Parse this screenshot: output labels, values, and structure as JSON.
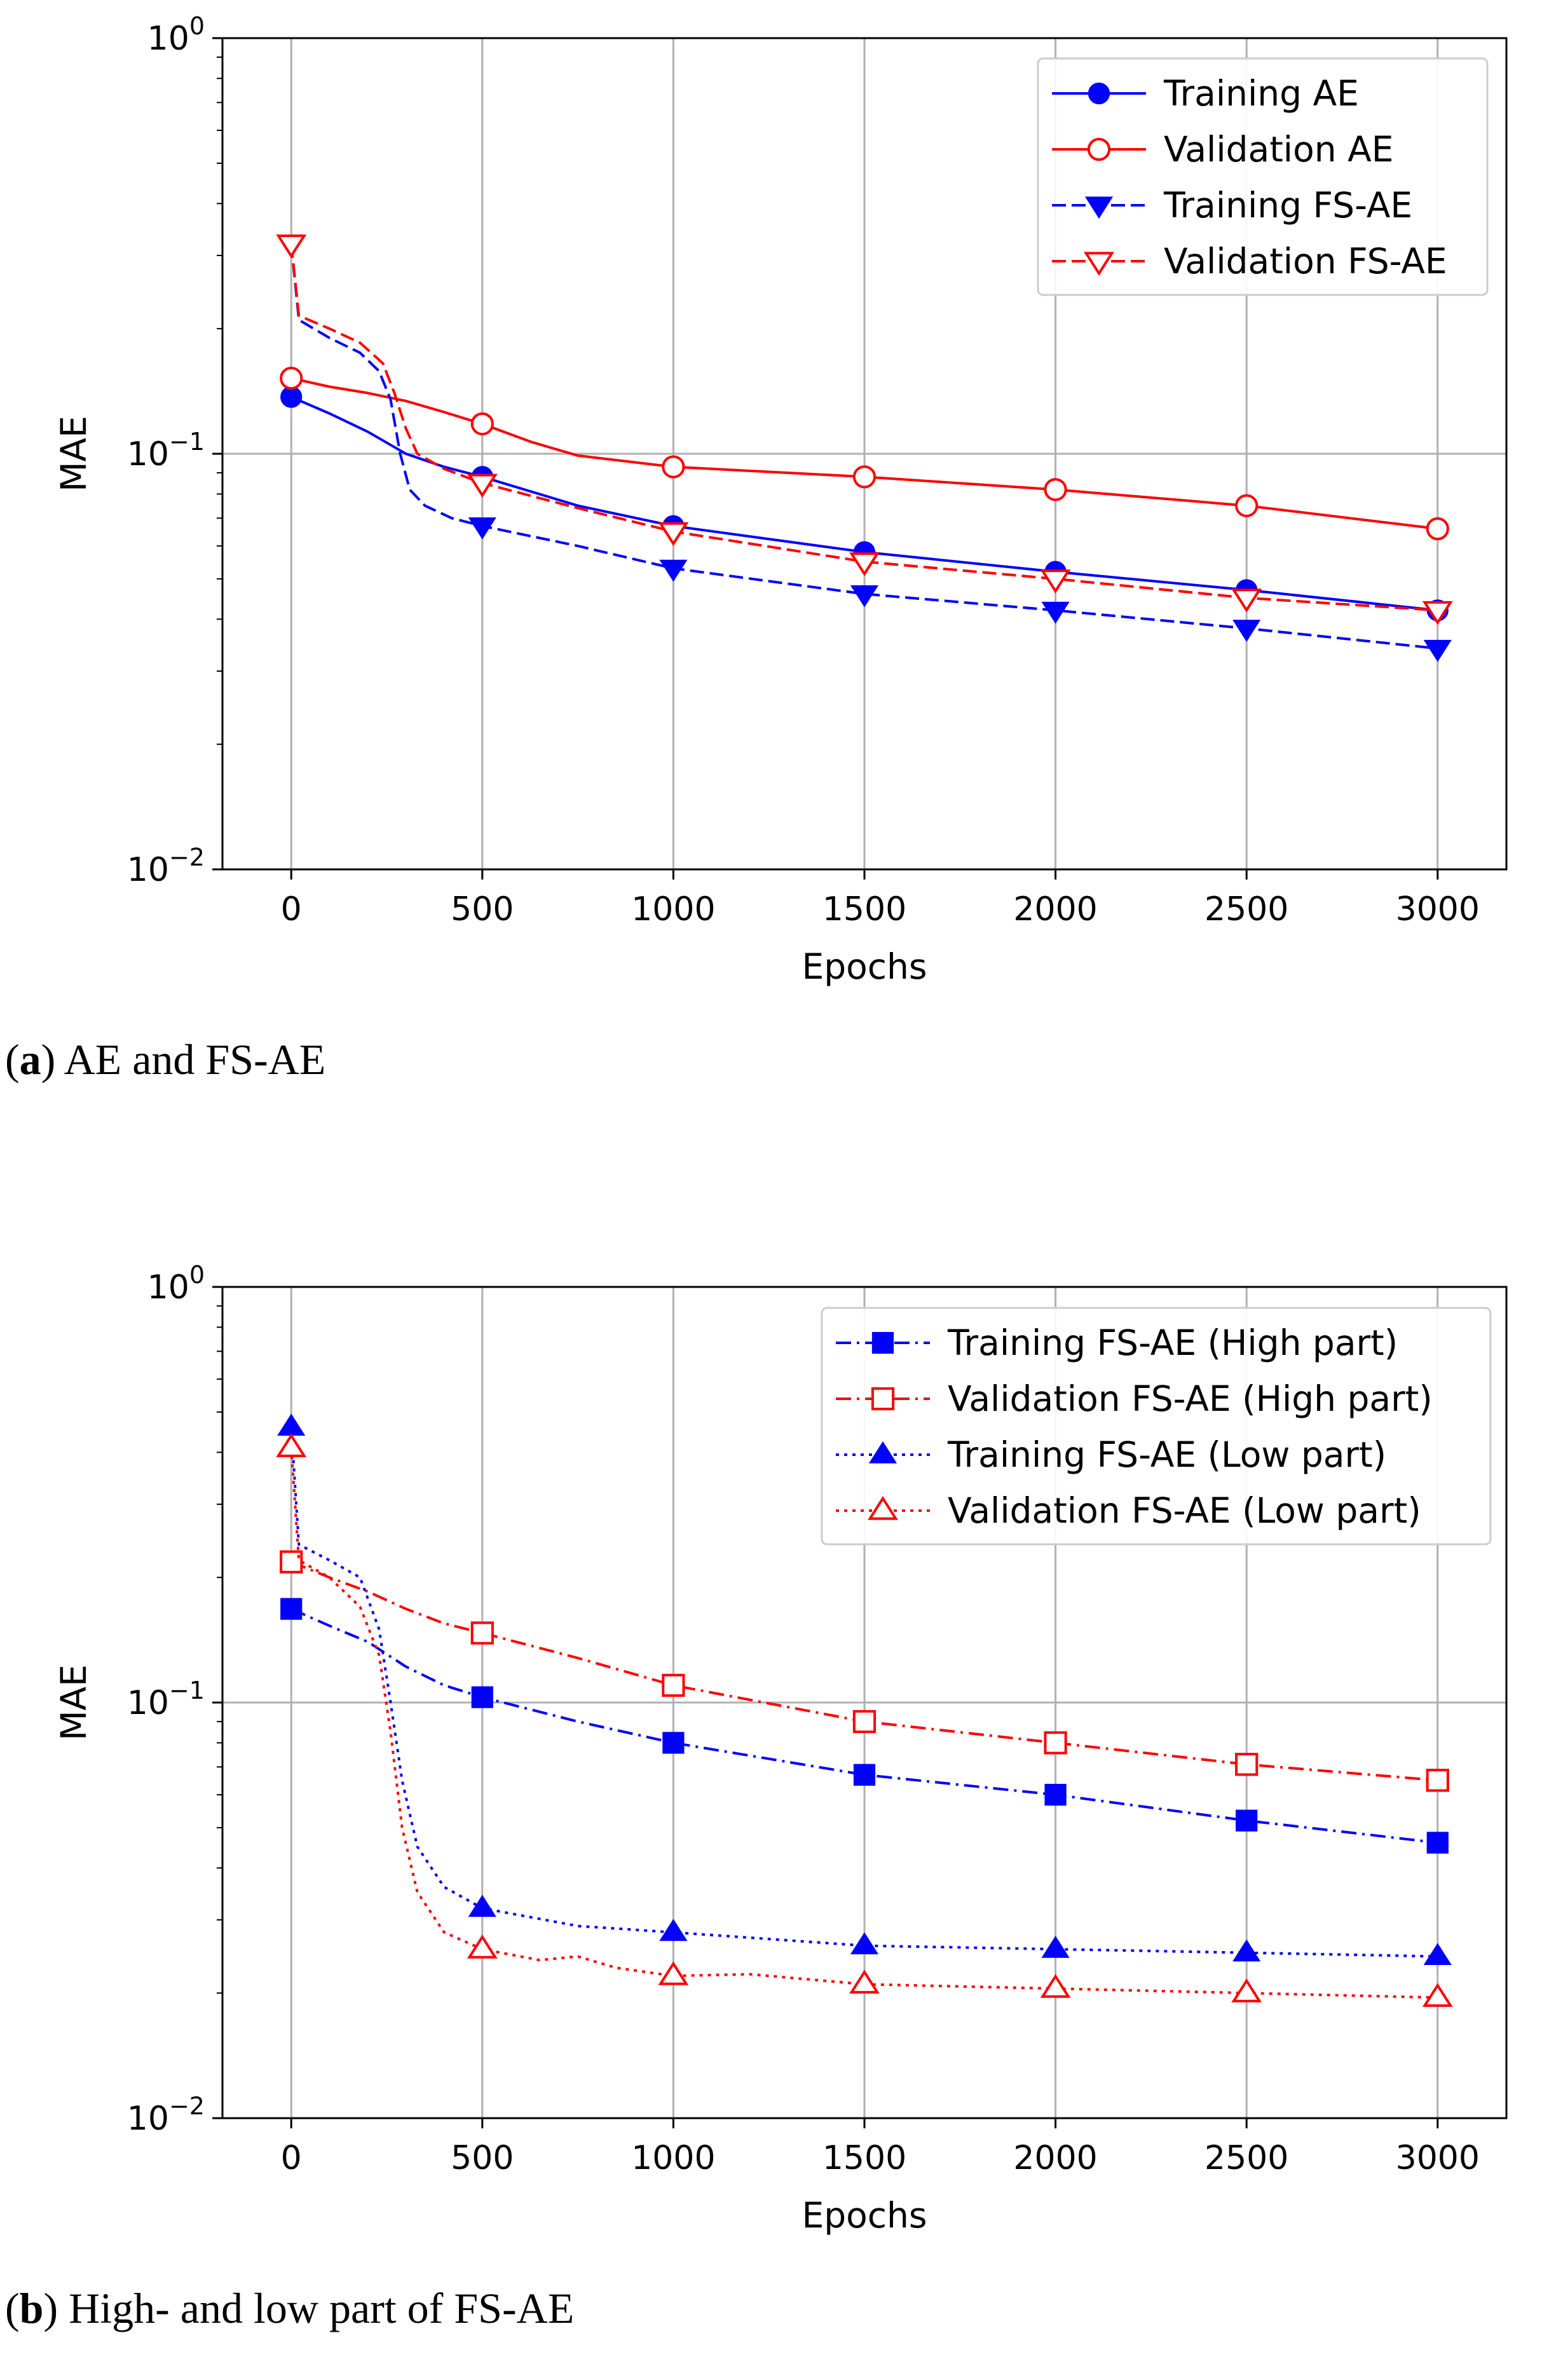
{
  "chart_data": [
    {
      "type": "line",
      "caption_letter": "a",
      "caption_text": "AE and FS-AE",
      "xlabel": "Epochs",
      "ylabel": "MAE",
      "yscale": "log",
      "xlim": [
        -180,
        3180
      ],
      "ylim": [
        0.01,
        1
      ],
      "x_ticks": [
        0,
        500,
        1000,
        1500,
        2000,
        2500,
        3000
      ],
      "x_tick_labels": [
        "0",
        "500",
        "1000",
        "1500",
        "2000",
        "2500",
        "3000"
      ],
      "y_ticks": [
        0.01,
        0.1,
        1
      ],
      "y_tick_labels": [
        {
          "base": "10",
          "exp": "−2"
        },
        {
          "base": "10",
          "exp": "−1"
        },
        {
          "base": "10",
          "exp": "0"
        }
      ],
      "grid": true,
      "legend_position": "top-right",
      "series": [
        {
          "name": "Training AE",
          "color": "#0000ff",
          "dash": "solid",
          "marker": "circle-filled",
          "curve": [
            [
              0,
              0.137
            ],
            [
              100,
              0.125
            ],
            [
              200,
              0.113
            ],
            [
              300,
              0.1
            ],
            [
              400,
              0.093
            ],
            [
              500,
              0.088
            ],
            [
              750,
              0.075
            ],
            [
              1000,
              0.067
            ],
            [
              1500,
              0.058
            ],
            [
              2000,
              0.052
            ],
            [
              2500,
              0.047
            ],
            [
              3000,
              0.042
            ]
          ],
          "markers": [
            [
              0,
              0.137
            ],
            [
              500,
              0.088
            ],
            [
              1000,
              0.067
            ],
            [
              1500,
              0.058
            ],
            [
              2000,
              0.052
            ],
            [
              2500,
              0.047
            ],
            [
              3000,
              0.042
            ]
          ]
        },
        {
          "name": "Validation AE",
          "color": "#ff0000",
          "dash": "solid",
          "marker": "circle-open",
          "curve": [
            [
              0,
              0.152
            ],
            [
              100,
              0.145
            ],
            [
              200,
              0.14
            ],
            [
              300,
              0.134
            ],
            [
              400,
              0.126
            ],
            [
              500,
              0.118
            ],
            [
              625,
              0.107
            ],
            [
              750,
              0.099
            ],
            [
              1000,
              0.093
            ],
            [
              1500,
              0.088
            ],
            [
              2000,
              0.082
            ],
            [
              2500,
              0.075
            ],
            [
              3000,
              0.066
            ]
          ],
          "markers": [
            [
              0,
              0.152
            ],
            [
              500,
              0.118
            ],
            [
              1000,
              0.093
            ],
            [
              1500,
              0.088
            ],
            [
              2000,
              0.082
            ],
            [
              2500,
              0.075
            ],
            [
              3000,
              0.066
            ]
          ]
        },
        {
          "name": "Training FS-AE",
          "color": "#0000ff",
          "dash": "dashed",
          "marker": "triangle-down-filled",
          "curve": [
            [
              0,
              0.32
            ],
            [
              20,
              0.21
            ],
            [
              100,
              0.19
            ],
            [
              180,
              0.175
            ],
            [
              230,
              0.158
            ],
            [
              260,
              0.135
            ],
            [
              285,
              0.1
            ],
            [
              310,
              0.082
            ],
            [
              350,
              0.075
            ],
            [
              420,
              0.07
            ],
            [
              500,
              0.067
            ],
            [
              750,
              0.06
            ],
            [
              1000,
              0.053
            ],
            [
              1500,
              0.046
            ],
            [
              2000,
              0.042
            ],
            [
              2500,
              0.038
            ],
            [
              3000,
              0.034
            ]
          ],
          "markers": [
            [
              0,
              0.32
            ],
            [
              500,
              0.067
            ],
            [
              1000,
              0.053
            ],
            [
              1500,
              0.046
            ],
            [
              2000,
              0.042
            ],
            [
              2500,
              0.038
            ],
            [
              3000,
              0.034
            ]
          ]
        },
        {
          "name": "Validation FS-AE",
          "color": "#ff0000",
          "dash": "dashed",
          "marker": "triangle-down-open",
          "curve": [
            [
              0,
              0.32
            ],
            [
              20,
              0.215
            ],
            [
              100,
              0.2
            ],
            [
              180,
              0.185
            ],
            [
              240,
              0.165
            ],
            [
              270,
              0.14
            ],
            [
              300,
              0.115
            ],
            [
              330,
              0.1
            ],
            [
              400,
              0.092
            ],
            [
              500,
              0.085
            ],
            [
              750,
              0.074
            ],
            [
              1000,
              0.065
            ],
            [
              1500,
              0.055
            ],
            [
              2000,
              0.05
            ],
            [
              2500,
              0.045
            ],
            [
              3000,
              0.042
            ]
          ],
          "markers": [
            [
              0,
              0.32
            ],
            [
              500,
              0.085
            ],
            [
              1000,
              0.065
            ],
            [
              1500,
              0.055
            ],
            [
              2000,
              0.05
            ],
            [
              2500,
              0.045
            ],
            [
              3000,
              0.042
            ]
          ]
        }
      ]
    },
    {
      "type": "line",
      "caption_letter": "b",
      "caption_text": "High- and low part of FS-AE",
      "xlabel": "Epochs",
      "ylabel": "MAE",
      "yscale": "log",
      "xlim": [
        -180,
        3180
      ],
      "ylim": [
        0.01,
        1
      ],
      "x_ticks": [
        0,
        500,
        1000,
        1500,
        2000,
        2500,
        3000
      ],
      "x_tick_labels": [
        "0",
        "500",
        "1000",
        "1500",
        "2000",
        "2500",
        "3000"
      ],
      "y_ticks": [
        0.01,
        0.1,
        1
      ],
      "y_tick_labels": [
        {
          "base": "10",
          "exp": "−2"
        },
        {
          "base": "10",
          "exp": "−1"
        },
        {
          "base": "10",
          "exp": "0"
        }
      ],
      "grid": true,
      "legend_position": "top-right",
      "series": [
        {
          "name": "Training FS-AE (High part)",
          "color": "#0000ff",
          "dash": "dashdot",
          "marker": "square-filled",
          "curve": [
            [
              0,
              0.168
            ],
            [
              100,
              0.153
            ],
            [
              200,
              0.14
            ],
            [
              300,
              0.122
            ],
            [
              400,
              0.11
            ],
            [
              500,
              0.103
            ],
            [
              750,
              0.09
            ],
            [
              1000,
              0.08
            ],
            [
              1500,
              0.067
            ],
            [
              2000,
              0.06
            ],
            [
              2500,
              0.052
            ],
            [
              3000,
              0.046
            ]
          ],
          "markers": [
            [
              0,
              0.168
            ],
            [
              500,
              0.103
            ],
            [
              1000,
              0.08
            ],
            [
              1500,
              0.067
            ],
            [
              2000,
              0.06
            ],
            [
              2500,
              0.052
            ],
            [
              3000,
              0.046
            ]
          ]
        },
        {
          "name": "Validation FS-AE (High part)",
          "color": "#ff0000",
          "dash": "dashdot",
          "marker": "square-open",
          "curve": [
            [
              0,
              0.218
            ],
            [
              100,
              0.2
            ],
            [
              200,
              0.185
            ],
            [
              300,
              0.168
            ],
            [
              400,
              0.155
            ],
            [
              500,
              0.147
            ],
            [
              750,
              0.128
            ],
            [
              1000,
              0.11
            ],
            [
              1500,
              0.09
            ],
            [
              2000,
              0.08
            ],
            [
              2500,
              0.071
            ],
            [
              3000,
              0.065
            ]
          ],
          "markers": [
            [
              0,
              0.218
            ],
            [
              500,
              0.147
            ],
            [
              1000,
              0.11
            ],
            [
              1500,
              0.09
            ],
            [
              2000,
              0.08
            ],
            [
              2500,
              0.071
            ],
            [
              3000,
              0.065
            ]
          ]
        },
        {
          "name": "Training FS-AE (Low part)",
          "color": "#0000ff",
          "dash": "dotted",
          "marker": "triangle-up-filled",
          "curve": [
            [
              0,
              0.46
            ],
            [
              20,
              0.24
            ],
            [
              100,
              0.22
            ],
            [
              180,
              0.2
            ],
            [
              230,
              0.15
            ],
            [
              260,
              0.1
            ],
            [
              290,
              0.065
            ],
            [
              330,
              0.045
            ],
            [
              400,
              0.036
            ],
            [
              500,
              0.032
            ],
            [
              750,
              0.029
            ],
            [
              1000,
              0.028
            ],
            [
              1500,
              0.026
            ],
            [
              2000,
              0.0255
            ],
            [
              2500,
              0.025
            ],
            [
              3000,
              0.0245
            ]
          ],
          "markers": [
            [
              0,
              0.46
            ],
            [
              500,
              0.032
            ],
            [
              1000,
              0.028
            ],
            [
              1500,
              0.026
            ],
            [
              2000,
              0.0255
            ],
            [
              2500,
              0.025
            ],
            [
              3000,
              0.0245
            ]
          ]
        },
        {
          "name": "Validation FS-AE (Low part)",
          "color": "#ff0000",
          "dash": "dotted",
          "marker": "triangle-up-open",
          "curve": [
            [
              0,
              0.41
            ],
            [
              20,
              0.22
            ],
            [
              100,
              0.2
            ],
            [
              180,
              0.17
            ],
            [
              230,
              0.13
            ],
            [
              260,
              0.085
            ],
            [
              290,
              0.05
            ],
            [
              330,
              0.035
            ],
            [
              400,
              0.028
            ],
            [
              500,
              0.0255
            ],
            [
              650,
              0.024
            ],
            [
              750,
              0.0245
            ],
            [
              850,
              0.023
            ],
            [
              1000,
              0.022
            ],
            [
              1200,
              0.0222
            ],
            [
              1500,
              0.021
            ],
            [
              2000,
              0.0205
            ],
            [
              2500,
              0.02
            ],
            [
              3000,
              0.0195
            ]
          ],
          "markers": [
            [
              0,
              0.41
            ],
            [
              500,
              0.0255
            ],
            [
              1000,
              0.022
            ],
            [
              1500,
              0.021
            ],
            [
              2000,
              0.0205
            ],
            [
              2500,
              0.02
            ],
            [
              3000,
              0.0195
            ]
          ]
        }
      ]
    }
  ]
}
